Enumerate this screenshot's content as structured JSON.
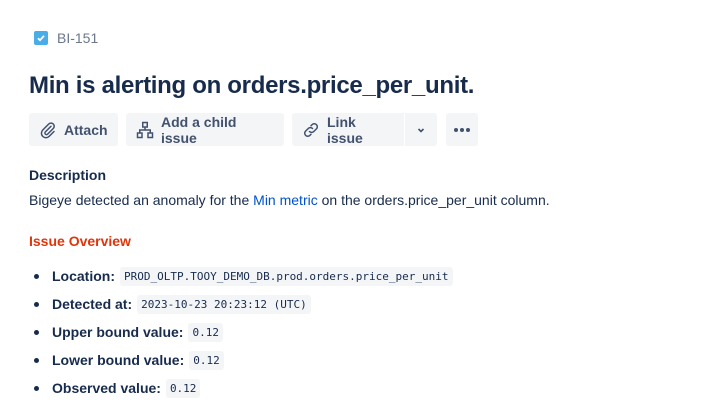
{
  "issue_key": "BI-151",
  "title": "Min is alerting on orders.price_per_unit.",
  "toolbar": {
    "attach": "Attach",
    "add_child": "Add a child issue",
    "link_issue": "Link issue"
  },
  "description": {
    "heading": "Description",
    "prefix": "Bigeye detected an anomaly for the ",
    "link": "Min metric",
    "suffix": " on the orders.price_per_unit column."
  },
  "overview": {
    "heading": "Issue Overview",
    "items": [
      {
        "label": "Location:",
        "value": "PROD_OLTP.TOOY_DEMO_DB.prod.orders.price_per_unit"
      },
      {
        "label": "Detected at:",
        "value": "2023-10-23 20:23:12 (UTC)"
      },
      {
        "label": "Upper bound value:",
        "value": "0.12"
      },
      {
        "label": "Lower bound value:",
        "value": "0.12"
      },
      {
        "label": "Observed value:",
        "value": "0.12"
      }
    ]
  },
  "colors": {
    "accent": "#0052cc",
    "overview_heading": "#de350b",
    "issue_type": "#4bade8"
  }
}
